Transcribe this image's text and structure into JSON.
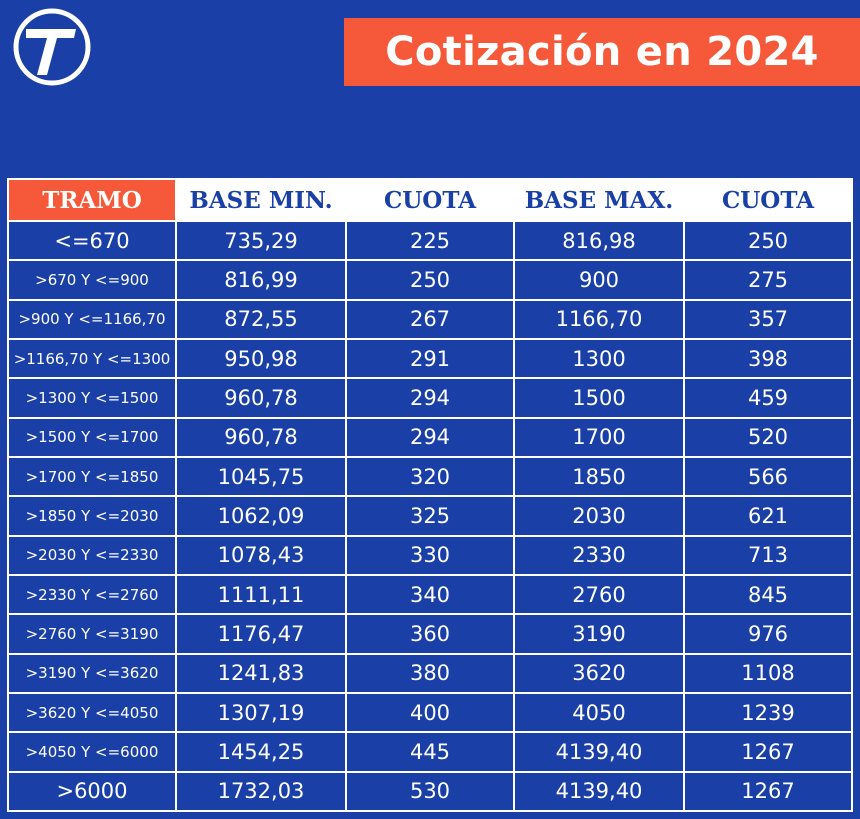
{
  "header": {
    "title": "Cotización en 2024",
    "logo_icon": "seven-logo-icon",
    "colors": {
      "background": "#1a3fa6",
      "accent": "#f5593a",
      "text": "#ffffff"
    }
  },
  "table": {
    "columns": [
      "TRAMO",
      "BASE MIN.",
      "CUOTA",
      "BASE MAX.",
      "CUOTA"
    ],
    "rows": [
      [
        "<=670",
        "735,29",
        "225",
        "816,98",
        "250"
      ],
      [
        ">670 Y <=900",
        "816,99",
        "250",
        "900",
        "275"
      ],
      [
        ">900 Y <=1166,70",
        "872,55",
        "267",
        "1166,70",
        "357"
      ],
      [
        ">1166,70 Y <=1300",
        "950,98",
        "291",
        "1300",
        "398"
      ],
      [
        ">1300 Y <=1500",
        "960,78",
        "294",
        "1500",
        "459"
      ],
      [
        ">1500 Y <=1700",
        "960,78",
        "294",
        "1700",
        "520"
      ],
      [
        ">1700 Y <=1850",
        "1045,75",
        "320",
        "1850",
        "566"
      ],
      [
        ">1850 Y <=2030",
        "1062,09",
        "325",
        "2030",
        "621"
      ],
      [
        ">2030 Y <=2330",
        "1078,43",
        "330",
        "2330",
        "713"
      ],
      [
        ">2330 Y <=2760",
        "1111,11",
        "340",
        "2760",
        "845"
      ],
      [
        ">2760 Y <=3190",
        "1176,47",
        "360",
        "3190",
        "976"
      ],
      [
        ">3190 Y <=3620",
        "1241,83",
        "380",
        "3620",
        "1108"
      ],
      [
        ">3620 Y <=4050",
        "1307,19",
        "400",
        "4050",
        "1239"
      ],
      [
        ">4050 Y <=6000",
        "1454,25",
        "445",
        "4139,40",
        "1267"
      ],
      [
        ">6000",
        "1732,03",
        "530",
        "4139,40",
        "1267"
      ]
    ]
  }
}
